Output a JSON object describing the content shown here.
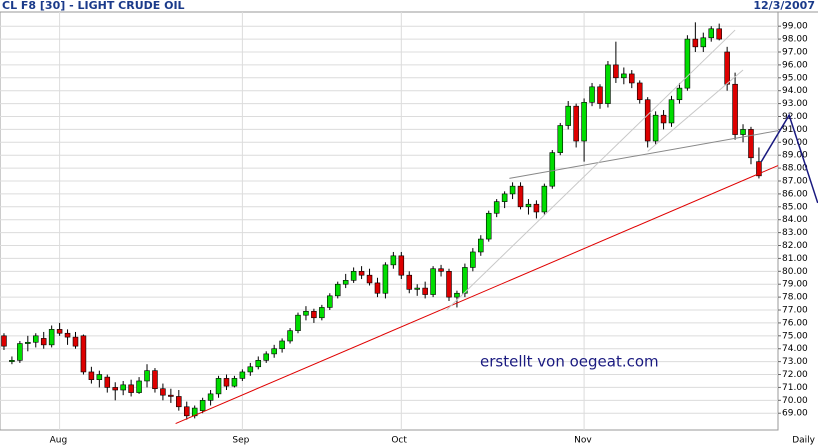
{
  "chart_data": {
    "type": "candlestick",
    "title": "CL F8 [30] - LIGHT CRUDE OIL",
    "date": "12/3/2007",
    "x_label": "Daily",
    "annotation": "erstellt von oegeat.com",
    "up_color": "#00dd00",
    "down_color": "#dd0000",
    "grid": true,
    "categories": [
      null,
      null,
      null,
      null,
      null,
      null,
      null,
      "Aug",
      null,
      null,
      null,
      null,
      null,
      null,
      null,
      null,
      null,
      null,
      null,
      null,
      null,
      null,
      null,
      null,
      null,
      null,
      null,
      null,
      null,
      null,
      "Sep",
      null,
      null,
      null,
      null,
      null,
      null,
      null,
      null,
      null,
      null,
      null,
      null,
      null,
      null,
      null,
      null,
      null,
      null,
      null,
      "Oct",
      null,
      null,
      null,
      null,
      null,
      null,
      null,
      null,
      null,
      null,
      null,
      null,
      null,
      null,
      null,
      null,
      null,
      null,
      null,
      null,
      null,
      null,
      "Nov",
      null,
      null,
      null,
      null,
      null,
      null,
      null,
      null,
      null,
      null,
      null,
      null,
      null,
      null,
      null,
      null,
      null,
      null,
      null,
      null,
      null,
      null
    ],
    "open": [
      75.0,
      73.0,
      73.1,
      74.4,
      74.5,
      74.8,
      74.3,
      75.5,
      75.2,
      74.9,
      75.0,
      72.2,
      71.6,
      71.8,
      71.0,
      70.8,
      71.2,
      70.6,
      71.5,
      72.3,
      70.9,
      70.4,
      70.3,
      69.5,
      68.8,
      69.2,
      70.0,
      70.5,
      71.7,
      71.1,
      71.7,
      72.2,
      72.6,
      73.1,
      73.6,
      74.0,
      74.6,
      75.4,
      76.6,
      76.9,
      76.4,
      77.2,
      78.1,
      79.0,
      79.3,
      80.0,
      79.7,
      79.1,
      78.3,
      80.5,
      81.2,
      79.7,
      78.6,
      78.7,
      78.2,
      80.2,
      80.0,
      78.0,
      78.3,
      80.3,
      81.5,
      82.5,
      84.5,
      85.4,
      86.0,
      86.6,
      85.0,
      85.2,
      84.6,
      86.6,
      89.2,
      91.3,
      92.8,
      90.1,
      93.1,
      94.3,
      93.0,
      96.0,
      95.0,
      95.3,
      94.6,
      93.3,
      90.1,
      92.1,
      91.5,
      93.3,
      94.2,
      98.0,
      97.4,
      98.1,
      98.8,
      97.0,
      94.5,
      90.6,
      91.0,
      88.5
    ],
    "high": [
      75.2,
      73.4,
      74.6,
      75.0,
      75.2,
      75.3,
      75.8,
      76.0,
      75.5,
      75.3,
      75.1,
      72.6,
      72.3,
      72.0,
      71.4,
      71.5,
      71.6,
      71.8,
      72.8,
      72.5,
      71.3,
      70.9,
      70.8,
      69.9,
      69.6,
      70.2,
      70.8,
      71.9,
      72.0,
      71.9,
      72.4,
      72.9,
      73.4,
      73.8,
      74.3,
      74.8,
      75.6,
      76.8,
      77.3,
      77.1,
      77.4,
      78.3,
      79.2,
      79.8,
      80.3,
      80.4,
      80.2,
      79.5,
      80.7,
      81.5,
      81.5,
      80.0,
      79.0,
      79.2,
      80.4,
      80.5,
      80.2,
      78.5,
      80.6,
      81.8,
      82.8,
      84.7,
      85.6,
      86.2,
      86.9,
      86.9,
      85.6,
      85.5,
      86.8,
      89.4,
      91.5,
      93.2,
      93.0,
      93.4,
      94.6,
      94.5,
      96.3,
      97.8,
      95.8,
      95.6,
      94.8,
      93.5,
      92.4,
      92.5,
      93.6,
      94.6,
      98.3,
      99.3,
      98.5,
      99.0,
      99.2,
      97.4,
      95.4,
      91.4,
      91.2,
      89.6
    ],
    "low": [
      73.9,
      72.8,
      72.9,
      73.8,
      74.1,
      74.0,
      74.1,
      75.0,
      74.3,
      74.0,
      72.0,
      71.3,
      71.0,
      70.6,
      70.0,
      70.4,
      70.3,
      70.5,
      71.0,
      70.6,
      70.0,
      69.8,
      69.2,
      68.5,
      68.6,
      69.0,
      69.6,
      70.2,
      70.8,
      71.0,
      71.5,
      71.9,
      72.4,
      72.9,
      73.3,
      73.7,
      74.4,
      75.2,
      76.2,
      76.0,
      76.2,
      77.0,
      77.9,
      78.7,
      79.1,
      79.4,
      78.9,
      78.0,
      77.9,
      80.2,
      79.4,
      78.3,
      78.1,
      77.9,
      78.0,
      79.6,
      77.7,
      77.2,
      78.0,
      80.0,
      81.2,
      82.3,
      84.2,
      84.9,
      85.6,
      84.8,
      84.4,
      84.1,
      84.4,
      86.4,
      89.0,
      91.0,
      89.6,
      88.5,
      92.8,
      92.6,
      92.7,
      94.6,
      94.5,
      94.2,
      93.0,
      89.6,
      89.8,
      91.0,
      91.2,
      93.0,
      94.0,
      97.0,
      97.0,
      97.8,
      97.9,
      94.0,
      90.2,
      90.0,
      88.3,
      87.2
    ],
    "close": [
      74.2,
      73.1,
      74.4,
      74.5,
      75.0,
      74.3,
      75.5,
      75.2,
      74.9,
      74.2,
      72.2,
      71.6,
      72.0,
      71.0,
      70.8,
      71.2,
      70.6,
      71.5,
      72.3,
      70.9,
      70.4,
      70.3,
      69.5,
      68.8,
      69.4,
      70.0,
      70.5,
      71.7,
      71.1,
      71.7,
      72.2,
      72.6,
      73.1,
      73.6,
      74.0,
      74.6,
      75.4,
      76.6,
      76.9,
      76.4,
      77.2,
      78.1,
      79.0,
      79.3,
      80.0,
      79.7,
      79.1,
      78.3,
      80.5,
      81.2,
      79.7,
      78.6,
      78.7,
      78.2,
      80.2,
      80.0,
      78.0,
      78.3,
      80.3,
      81.5,
      82.5,
      84.5,
      85.4,
      86.0,
      86.6,
      85.0,
      85.2,
      84.6,
      86.6,
      89.2,
      91.3,
      92.8,
      90.1,
      93.1,
      94.3,
      93.0,
      96.0,
      95.0,
      95.3,
      94.6,
      93.3,
      90.1,
      92.1,
      91.5,
      93.3,
      94.2,
      98.0,
      97.4,
      98.1,
      98.8,
      98.0,
      94.5,
      90.6,
      91.0,
      88.8,
      87.4
    ],
    "xlim": [
      -0.5,
      97.4
    ],
    "ylim": [
      67.7,
      100.1
    ],
    "yticks": [
      {
        "value": 69,
        "label": "69.00"
      },
      {
        "value": 70,
        "label": "70.00"
      },
      {
        "value": 71,
        "label": "71.00"
      },
      {
        "value": 72,
        "label": "72.00"
      },
      {
        "value": 73,
        "label": "73.00"
      },
      {
        "value": 74,
        "label": "74.00"
      },
      {
        "value": 75,
        "label": "75.00"
      },
      {
        "value": 76,
        "label": "76.00"
      },
      {
        "value": 77,
        "label": "77.00"
      },
      {
        "value": 78,
        "label": "78.00"
      },
      {
        "value": 79,
        "label": "79.00"
      },
      {
        "value": 80,
        "label": "80.00"
      },
      {
        "value": 81,
        "label": "81.00"
      },
      {
        "value": 82,
        "label": "82.00"
      },
      {
        "value": 83,
        "label": "83.00"
      },
      {
        "value": 84,
        "label": "84.00"
      },
      {
        "value": 85,
        "label": "85.00"
      },
      {
        "value": 86,
        "label": "86.00"
      },
      {
        "value": 87,
        "label": "87.00"
      },
      {
        "value": 88,
        "label": "88.00"
      },
      {
        "value": 89,
        "label": "89.00"
      },
      {
        "value": 90,
        "label": "90.00"
      },
      {
        "value": 91,
        "label": "91.00"
      },
      {
        "value": 92,
        "label": "92.00"
      },
      {
        "value": 93,
        "label": "93.00"
      },
      {
        "value": 94,
        "label": "94.00"
      },
      {
        "value": 95,
        "label": "95.00"
      },
      {
        "value": 96,
        "label": "96.00"
      },
      {
        "value": 97,
        "label": "97.00"
      },
      {
        "value": 98,
        "label": "98.00"
      },
      {
        "value": 99,
        "label": "99.00"
      }
    ],
    "trendlines": [
      {
        "color": "#e00000",
        "x": [
          21.6,
          97.4
        ],
        "y": [
          68.2,
          88.2
        ]
      },
      {
        "color": "#888888",
        "x": [
          63.6,
          97.4
        ],
        "y": [
          87.2,
          90.9
        ]
      },
      {
        "color": "#c8c8c8",
        "x": [
          55.7,
          92.0
        ],
        "y": [
          77.0,
          98.7
        ]
      },
      {
        "color": "#c8c8c8",
        "x": [
          81.0,
          93.0
        ],
        "y": [
          89.3,
          95.6
        ]
      },
      {
        "color": "#1a1a80",
        "x": [
          95.3,
          98.8,
          102.4
        ],
        "y": [
          88.5,
          92.1,
          85.3
        ]
      }
    ]
  }
}
